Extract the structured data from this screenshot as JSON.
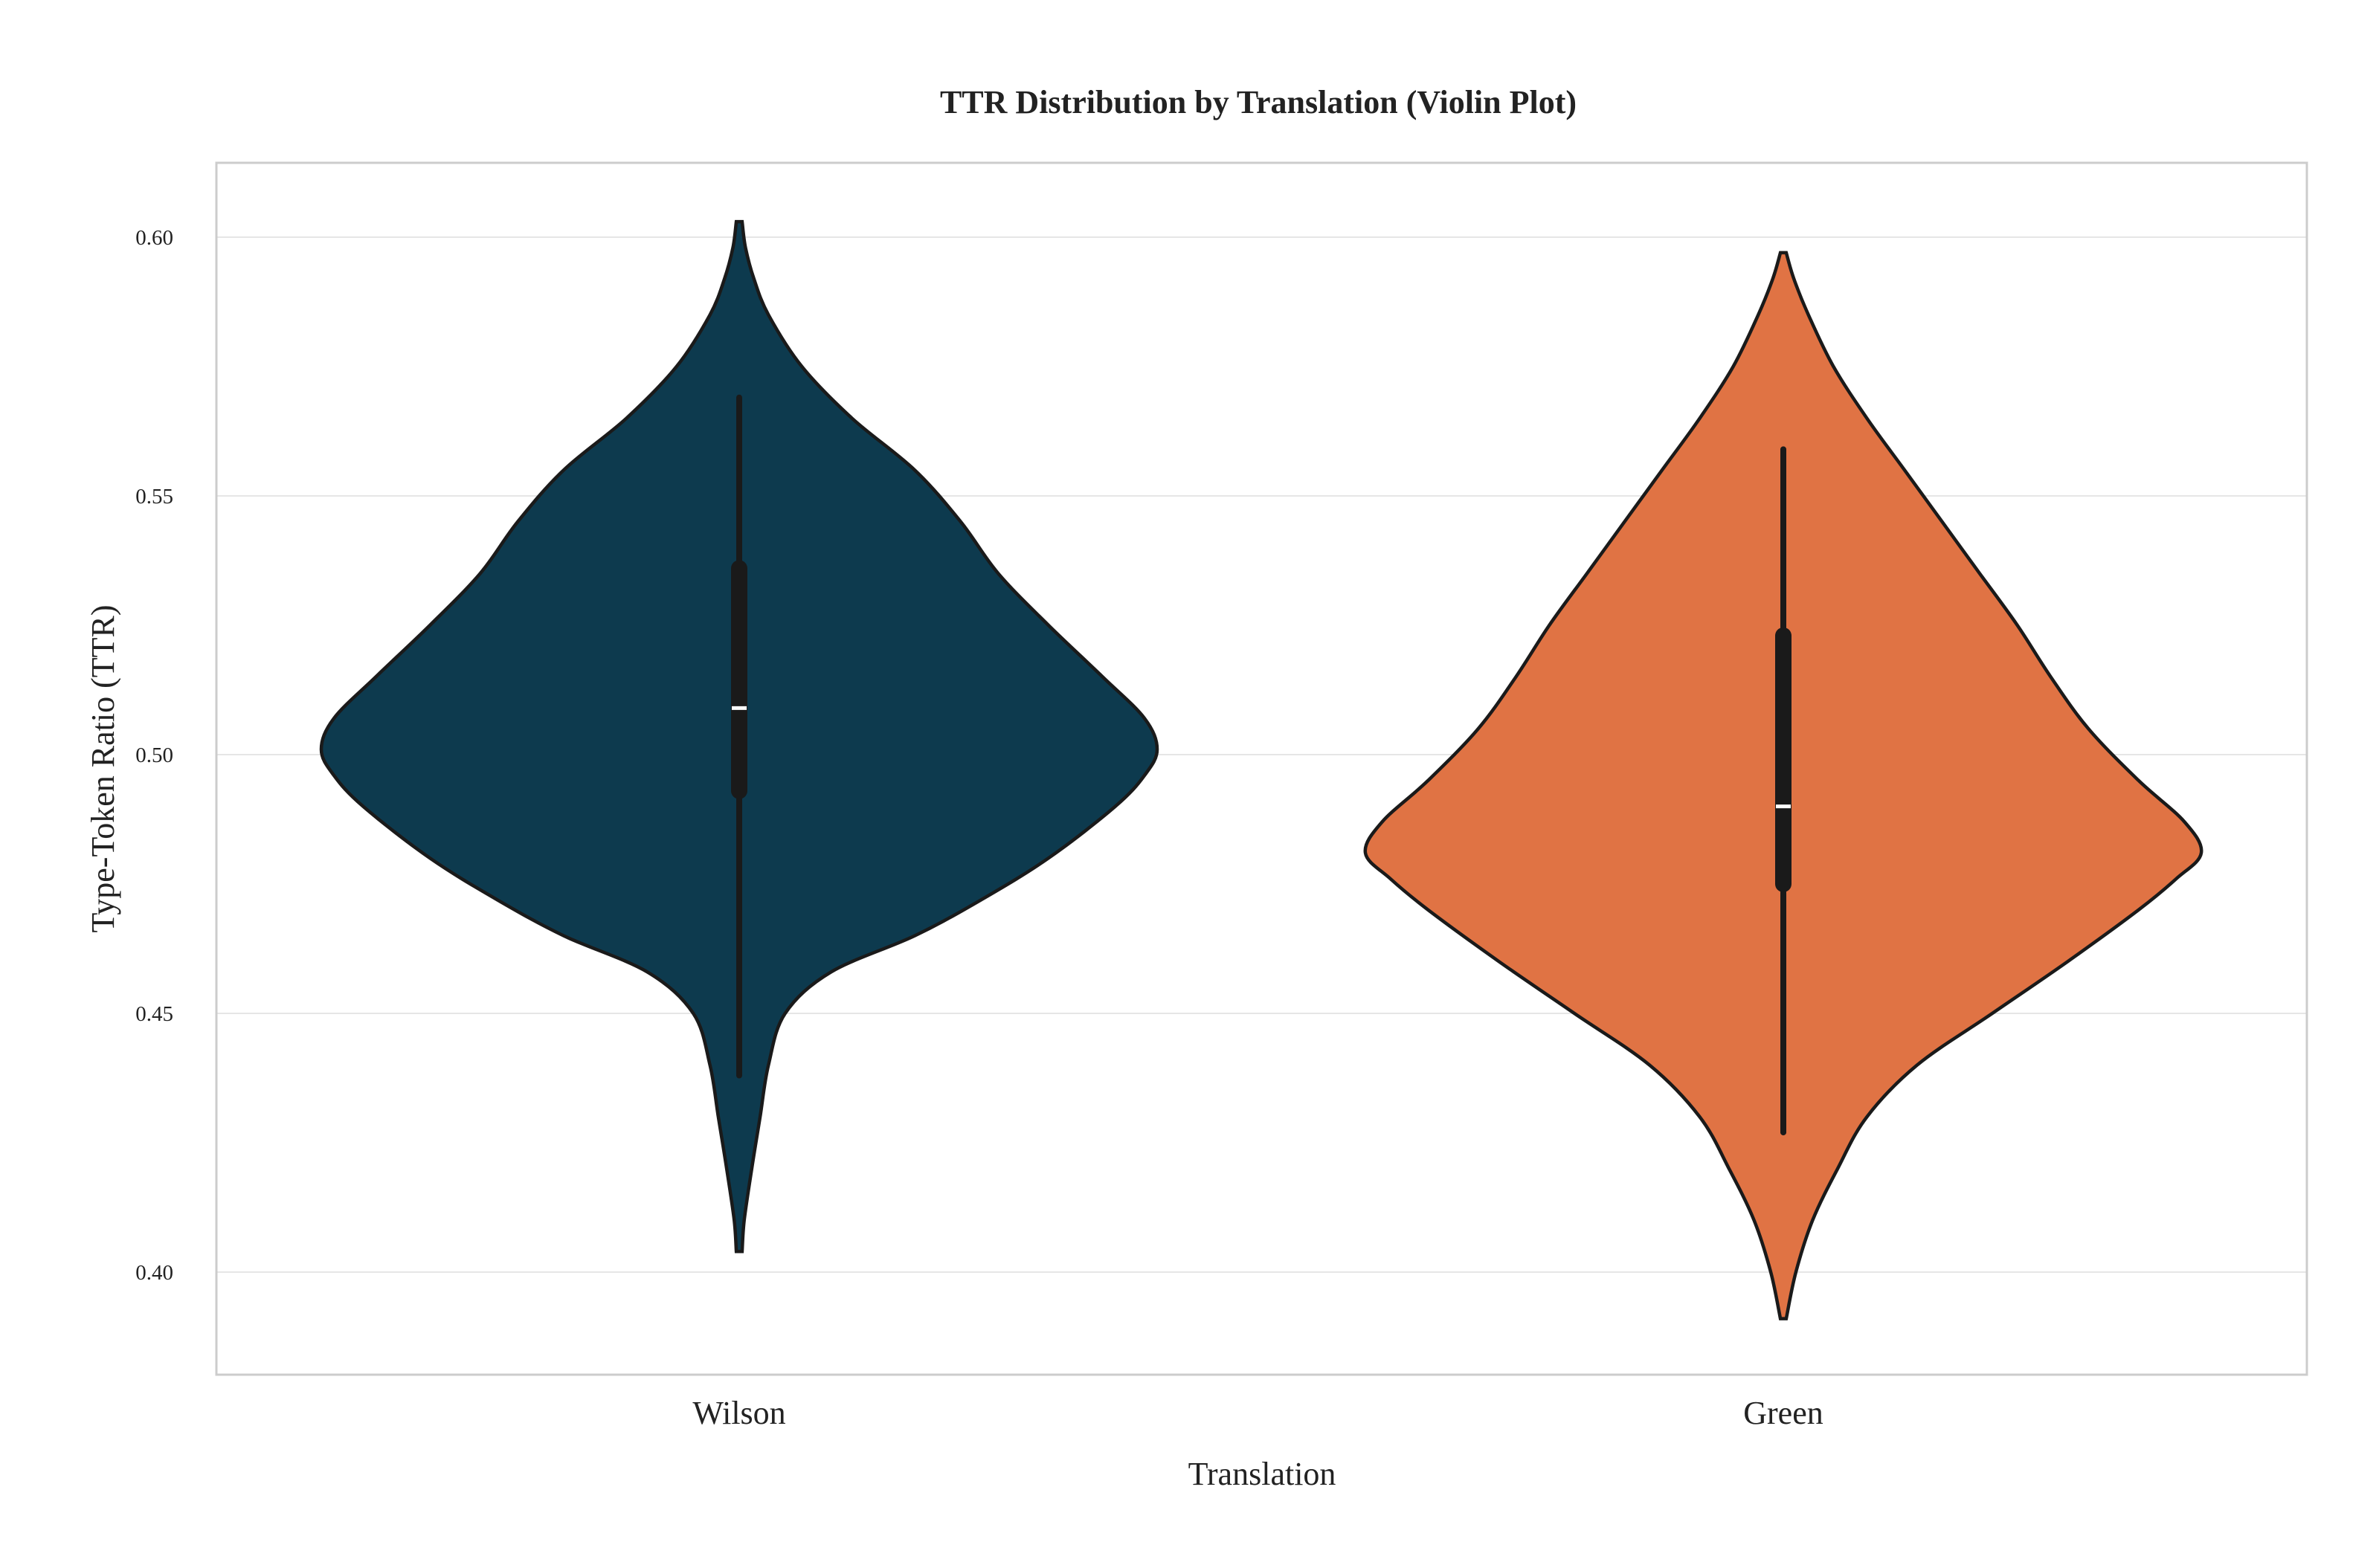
{
  "chart_data": {
    "type": "violin",
    "title": "TTR Distribution by Translation (Violin Plot)",
    "xlabel": "Translation",
    "ylabel": "Type-Token Ratio (TTR)",
    "ylim": [
      0.38,
      0.615
    ],
    "yticks": [
      0.4,
      0.45,
      0.5,
      0.55,
      0.6
    ],
    "ytick_labels": [
      "0.40",
      "0.45",
      "0.50",
      "0.55",
      "0.60"
    ],
    "categories": [
      "Wilson",
      "Green"
    ],
    "grid": true,
    "legend": "none",
    "series": [
      {
        "category": "Wilson",
        "color": "#0d3a4e",
        "min": 0.404,
        "max": 0.603,
        "whisker_low": 0.438,
        "whisker_high": 0.569,
        "q1": 0.493,
        "q3": 0.536,
        "median": 0.509,
        "density": [
          [
            0.404,
            0.007
          ],
          [
            0.41,
            0.012
          ],
          [
            0.42,
            0.03
          ],
          [
            0.43,
            0.05
          ],
          [
            0.44,
            0.07
          ],
          [
            0.45,
            0.11
          ],
          [
            0.458,
            0.22
          ],
          [
            0.465,
            0.42
          ],
          [
            0.472,
            0.58
          ],
          [
            0.48,
            0.74
          ],
          [
            0.49,
            0.9
          ],
          [
            0.496,
            0.97
          ],
          [
            0.501,
            1.0
          ],
          [
            0.507,
            0.97
          ],
          [
            0.515,
            0.87
          ],
          [
            0.525,
            0.74
          ],
          [
            0.535,
            0.62
          ],
          [
            0.545,
            0.53
          ],
          [
            0.555,
            0.42
          ],
          [
            0.565,
            0.27
          ],
          [
            0.575,
            0.15
          ],
          [
            0.585,
            0.07
          ],
          [
            0.592,
            0.035
          ],
          [
            0.598,
            0.015
          ],
          [
            0.603,
            0.007
          ]
        ]
      },
      {
        "category": "Green",
        "color": "#e07344",
        "min": 0.391,
        "max": 0.597,
        "whisker_low": 0.427,
        "whisker_high": 0.559,
        "q1": 0.475,
        "q3": 0.523,
        "median": 0.49,
        "density": [
          [
            0.391,
            0.007
          ],
          [
            0.4,
            0.03
          ],
          [
            0.41,
            0.07
          ],
          [
            0.42,
            0.13
          ],
          [
            0.43,
            0.2
          ],
          [
            0.44,
            0.32
          ],
          [
            0.45,
            0.5
          ],
          [
            0.46,
            0.68
          ],
          [
            0.47,
            0.85
          ],
          [
            0.476,
            0.94
          ],
          [
            0.481,
            1.0
          ],
          [
            0.487,
            0.96
          ],
          [
            0.495,
            0.85
          ],
          [
            0.505,
            0.73
          ],
          [
            0.515,
            0.64
          ],
          [
            0.525,
            0.56
          ],
          [
            0.535,
            0.47
          ],
          [
            0.545,
            0.38
          ],
          [
            0.555,
            0.29
          ],
          [
            0.565,
            0.2
          ],
          [
            0.575,
            0.12
          ],
          [
            0.585,
            0.06
          ],
          [
            0.592,
            0.025
          ],
          [
            0.597,
            0.007
          ]
        ]
      }
    ]
  }
}
